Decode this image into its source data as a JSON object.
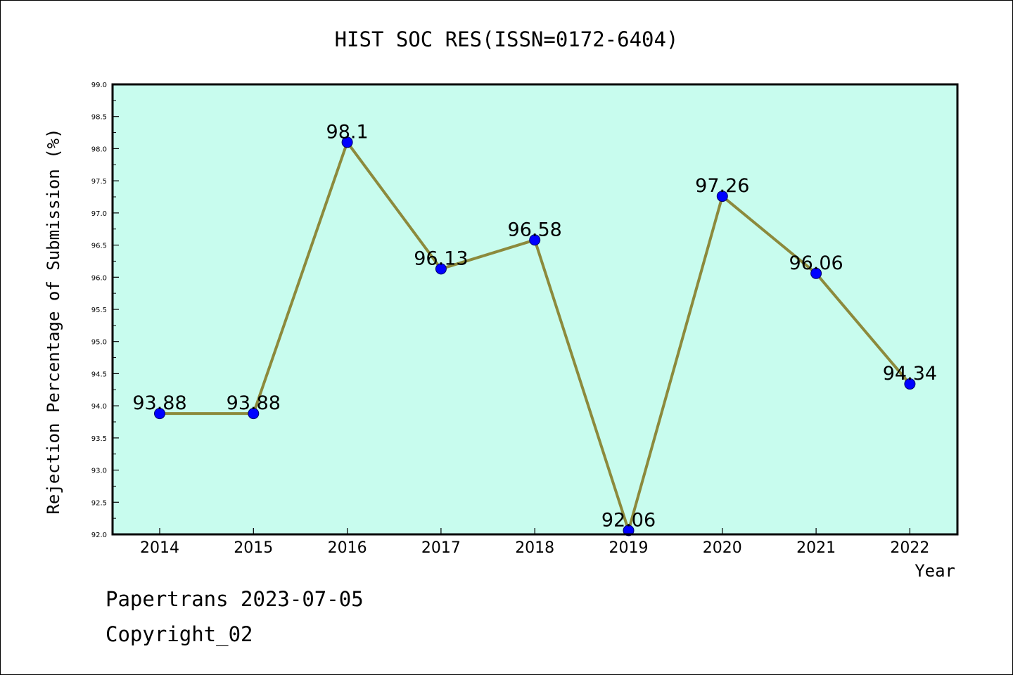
{
  "chart_data": {
    "type": "line",
    "title": "HIST SOC RES(ISSN=0172-6404)",
    "xlabel": "Year",
    "ylabel": "Rejection Percentage of Submission (%)",
    "categories": [
      "2014",
      "2015",
      "2016",
      "2017",
      "2018",
      "2019",
      "2020",
      "2021",
      "2022"
    ],
    "values": [
      93.88,
      93.88,
      98.1,
      96.13,
      96.58,
      92.06,
      97.26,
      96.06,
      94.34
    ],
    "data_labels": [
      "93.88",
      "93.88",
      "98.1",
      "96.13",
      "96.58",
      "92.06",
      "97.26",
      "96.06",
      "94.34"
    ],
    "ylim": [
      92.0,
      99.0
    ],
    "yticks": [
      "92.0",
      "92.5",
      "93.0",
      "93.5",
      "94.0",
      "94.5",
      "95.0",
      "95.5",
      "96.0",
      "96.5",
      "97.0",
      "97.5",
      "98.0",
      "98.5",
      "99.0"
    ],
    "grid": false,
    "legend": "none",
    "colors": {
      "plot_background": "#c8fcee",
      "line": "#8c8a3c",
      "marker": "#0000ff"
    }
  },
  "footer": {
    "line1": "Papertrans 2023-07-05",
    "line2": "Copyright_02"
  }
}
